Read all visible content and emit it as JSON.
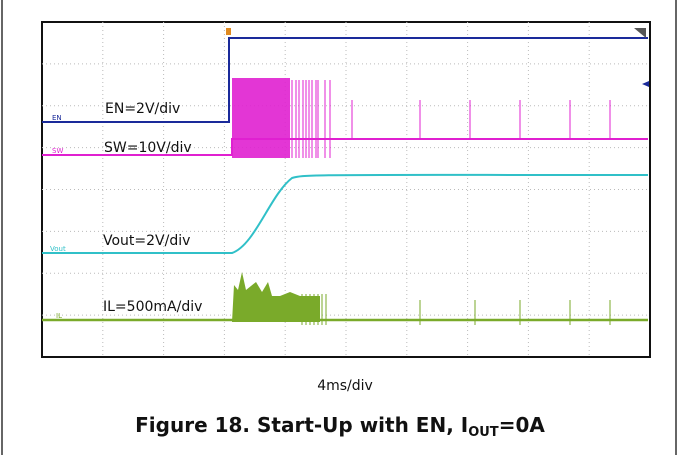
{
  "figure": {
    "channels": [
      {
        "tag": "EN",
        "scale": "EN=2V/div"
      },
      {
        "tag": "SW",
        "scale": "SW=10V/div"
      },
      {
        "tag": "Vout",
        "scale": "Vout=2V/div"
      },
      {
        "tag": "IL",
        "scale": "IL=500mA/div"
      }
    ],
    "timebase": "4ms/div",
    "caption": {
      "text": "Figure 18. Start-Up with EN, I",
      "subscript": "OUT",
      "tail": "=0A"
    }
  }
}
